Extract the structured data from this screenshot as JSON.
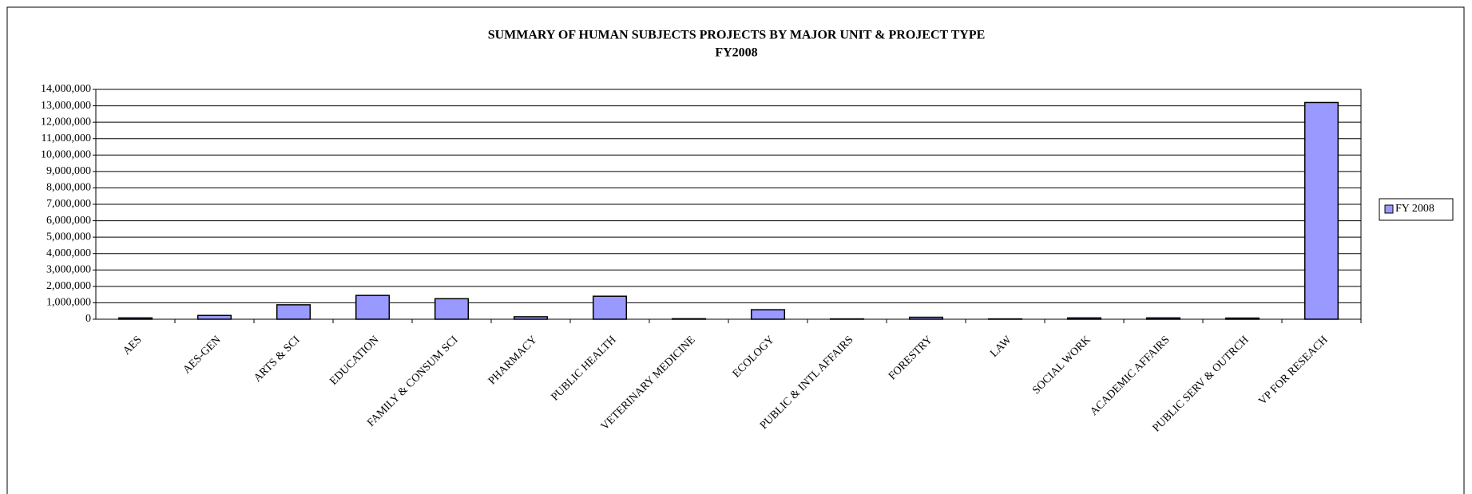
{
  "chart_data": {
    "type": "bar",
    "title": "SUMMARY OF HUMAN SUBJECTS PROJECTS BY MAJOR UNIT & PROJECT TYPE",
    "subtitle": "FY2008",
    "categories": [
      "AES",
      "AES-GEN",
      "ARTS & SCI",
      "EDUCATION",
      "FAMILY & CONSUM SCI",
      "PHARMACY",
      "PUBLIC HEALTH",
      "VETERINARY MEDICINE",
      "ECOLOGY",
      "PUBLIC & INTL AFFAIRS",
      "FORESTRY",
      "LAW",
      "SOCIAL WORK",
      "ACADEMIC AFFAIRS",
      "PUBLIC SERV & OUTRCH",
      "VP FOR RESEACH"
    ],
    "series": [
      {
        "name": "FY 2008",
        "color": "#9999ff",
        "values": [
          80000,
          230000,
          880000,
          1450000,
          1250000,
          150000,
          1400000,
          30000,
          580000,
          20000,
          120000,
          20000,
          80000,
          80000,
          70000,
          13200000
        ]
      }
    ],
    "ylim": [
      0,
      14000000
    ],
    "yticks": [
      0,
      {
        "value": 1000000,
        "label": "1,000,000"
      },
      {
        "value": 2000000,
        "label": "2,000,000"
      },
      {
        "value": 3000000,
        "label": "3,000,000"
      },
      {
        "value": 4000000,
        "label": "4,000,000"
      },
      {
        "value": 5000000,
        "label": "5,000,000"
      },
      {
        "value": 6000000,
        "label": "6,000,000"
      },
      {
        "value": 7000000,
        "label": "7,000,000"
      },
      {
        "value": 8000000,
        "label": "8,000,000"
      },
      {
        "value": 9000000,
        "label": "9,000,000"
      },
      {
        "value": 10000000,
        "label": "10,000,000"
      },
      {
        "value": 11000000,
        "label": "11,000,000"
      },
      {
        "value": 12000000,
        "label": "12,000,000"
      },
      {
        "value": 13000000,
        "label": "13,000,000"
      },
      {
        "value": 14000000,
        "label": "14,000,000"
      }
    ],
    "grid": true,
    "legend": "right"
  }
}
